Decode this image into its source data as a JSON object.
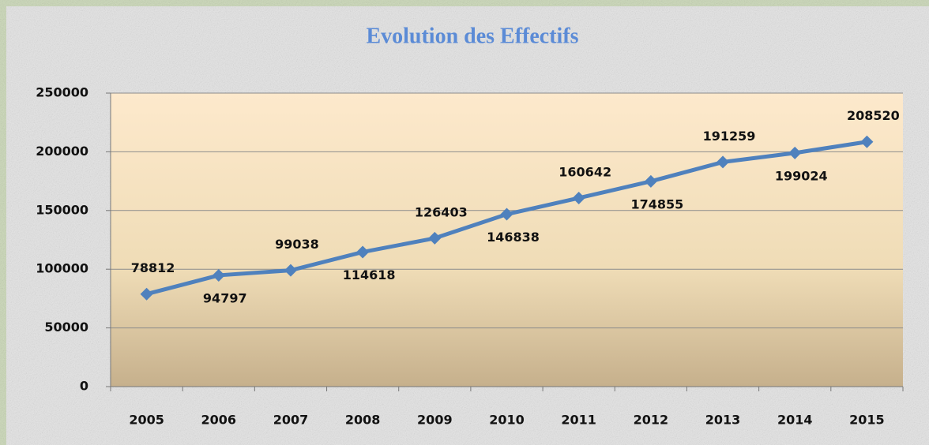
{
  "chart_data": {
    "type": "line",
    "title": "Evolution des Effectifs",
    "categories": [
      "2005",
      "2006",
      "2007",
      "2008",
      "2009",
      "2010",
      "2011",
      "2012",
      "2013",
      "2014",
      "2015"
    ],
    "series": [
      {
        "name": "Effectifs",
        "color": "#4f81bd",
        "values": [
          78812,
          94797,
          99038,
          114618,
          126403,
          146838,
          160642,
          174855,
          191259,
          199024,
          208520
        ]
      }
    ],
    "ylim": [
      0,
      250000
    ],
    "yticks": [
      0,
      50000,
      100000,
      150000,
      200000,
      250000
    ],
    "grid": true
  }
}
